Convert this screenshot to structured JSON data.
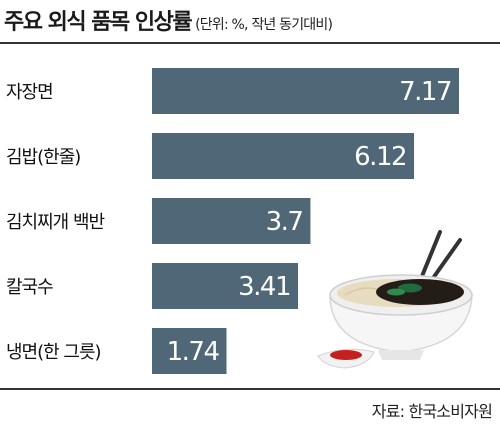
{
  "chart_data": {
    "type": "bar",
    "orientation": "horizontal",
    "title": "주요 외식 품목 인상률",
    "unit_note": "(단위: %, 작년 동기대비)",
    "categories": [
      "자장면",
      "김밥(한줄)",
      "김치찌개 백반",
      "칼국수",
      "냉면(한 그릇)"
    ],
    "values": [
      7.17,
      6.12,
      3.7,
      3.41,
      1.74
    ],
    "value_labels": [
      "7.17",
      "6.12",
      "3.7",
      "3.41",
      "1.74"
    ],
    "xlim": [
      0,
      7.17
    ],
    "grid": false,
    "legend": "none",
    "source": "자료: 한국소비자원"
  },
  "colors": {
    "bar": "#4f6776",
    "bar_edge": "#3f5563",
    "rule": "#333333"
  },
  "illustration": "jajangmyeon-bowl-icon"
}
